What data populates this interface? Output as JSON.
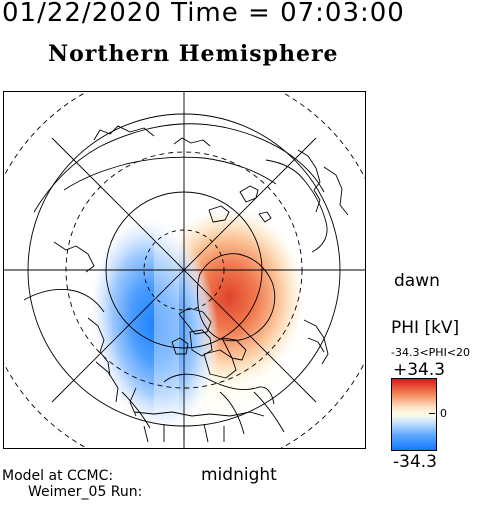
{
  "header": {
    "datetime": "01/22/2020 Time = 07:03:00",
    "hemisphere": "Northern Hemisphere"
  },
  "map": {
    "orientation_labels": {
      "right": "dawn",
      "bottom": "midnight"
    },
    "latitude_circles_dashed": true,
    "meridian_spokes": 8,
    "potential_pattern": {
      "positive_cell": "dawn side (upper right)",
      "negative_cell": "dusk side (left)"
    }
  },
  "legend": {
    "quantity_label": "PHI [kV]",
    "range_text": "-34.3<PHI<20",
    "max_label": "+34.3",
    "min_label": "-34.3",
    "zero_label": "0",
    "colors": {
      "max": "#d7191c",
      "zero": "#fffde8",
      "min": "#1478ff"
    }
  },
  "footer": {
    "model_line": "Model at CCMC:",
    "run_line": "Weimer_05 Run:"
  }
}
